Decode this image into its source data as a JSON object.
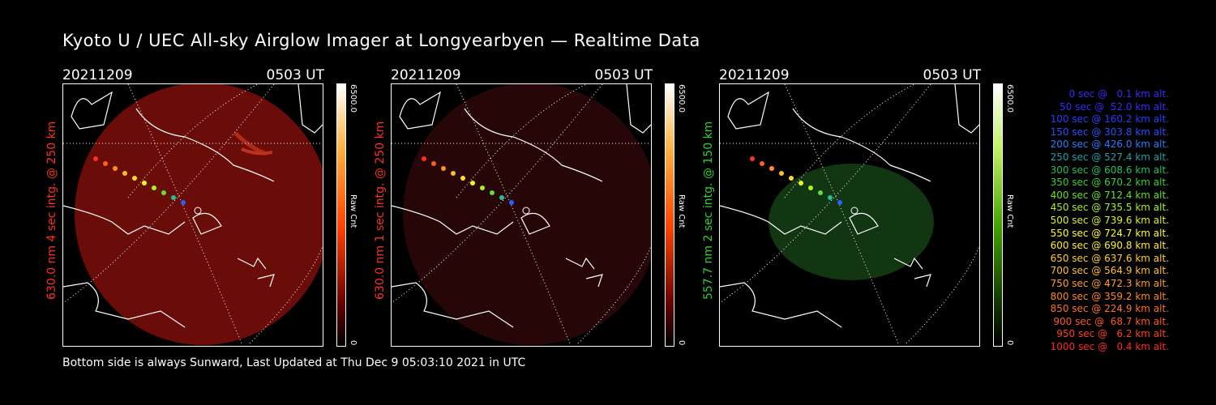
{
  "title": "Kyoto U / UEC All-sky Airglow Imager at Longyearbyen — Realtime Data",
  "footer": "Bottom side is always Sunward, Last Updated at Thu Dec  9 05:03:10 2021 in UTC",
  "panels": [
    {
      "date": "20211209",
      "time": "0503 UT",
      "side_label": "630.0 nm 4 sec intg. @ 250 km",
      "label_color": "#ff3020",
      "colorbar_max": "6500.0",
      "colorbar_min": "0",
      "colorbar_unit": "Raw Cnt",
      "colorbar_hue": "red"
    },
    {
      "date": "20211209",
      "time": "0503 UT",
      "side_label": "630.0 nm 1 sec intg. @ 250 km",
      "label_color": "#ff3020",
      "colorbar_max": "6500.0",
      "colorbar_min": "0",
      "colorbar_unit": "Raw Cnt",
      "colorbar_hue": "red"
    },
    {
      "date": "20211209",
      "time": "0503 UT",
      "side_label": "557.7 nm 2 sec intg. @ 150 km",
      "label_color": "#30d030",
      "colorbar_max": "6500.0",
      "colorbar_min": "0",
      "colorbar_unit": "Raw Cnt",
      "colorbar_hue": "green"
    }
  ],
  "legend": [
    {
      "text": "0 sec @   0.1 km alt.",
      "color": "#3a28ff"
    },
    {
      "text": "50 sec @  52.0 km alt.",
      "color": "#3a28ff"
    },
    {
      "text": "100 sec @ 160.2 km alt.",
      "color": "#2a3cff"
    },
    {
      "text": "150 sec @ 303.8 km alt.",
      "color": "#2a50ff"
    },
    {
      "text": "200 sec @ 426.0 km alt.",
      "color": "#2a7cff"
    },
    {
      "text": "250 sec @ 527.4 km alt.",
      "color": "#20a0a0"
    },
    {
      "text": "300 sec @ 608.6 km alt.",
      "color": "#22c060"
    },
    {
      "text": "350 sec @ 670.2 km alt.",
      "color": "#33d233"
    },
    {
      "text": "400 sec @ 712.4 km alt.",
      "color": "#66e022"
    },
    {
      "text": "450 sec @ 735.5 km alt.",
      "color": "#aaf022"
    },
    {
      "text": "500 sec @ 739.6 km alt.",
      "color": "#dcf020"
    },
    {
      "text": "550 sec @ 724.7 km alt.",
      "color": "#ffff22"
    },
    {
      "text": "600 sec @ 690.8 km alt.",
      "color": "#ffee22"
    },
    {
      "text": "650 sec @ 637.6 km alt.",
      "color": "#ffd020"
    },
    {
      "text": "700 sec @ 564.9 km alt.",
      "color": "#ffc020"
    },
    {
      "text": "750 sec @ 472.3 km alt.",
      "color": "#ffa020"
    },
    {
      "text": "800 sec @ 359.2 km alt.",
      "color": "#ff8820"
    },
    {
      "text": "850 sec @ 224.9 km alt.",
      "color": "#ff7020"
    },
    {
      "text": "900 sec @  68.7 km alt.",
      "color": "#ff5a20"
    },
    {
      "text": "950 sec @   6.2 km alt.",
      "color": "#ff4020"
    },
    {
      "text": "1000 sec @   0.4 km alt.",
      "color": "#ff2a20"
    }
  ]
}
